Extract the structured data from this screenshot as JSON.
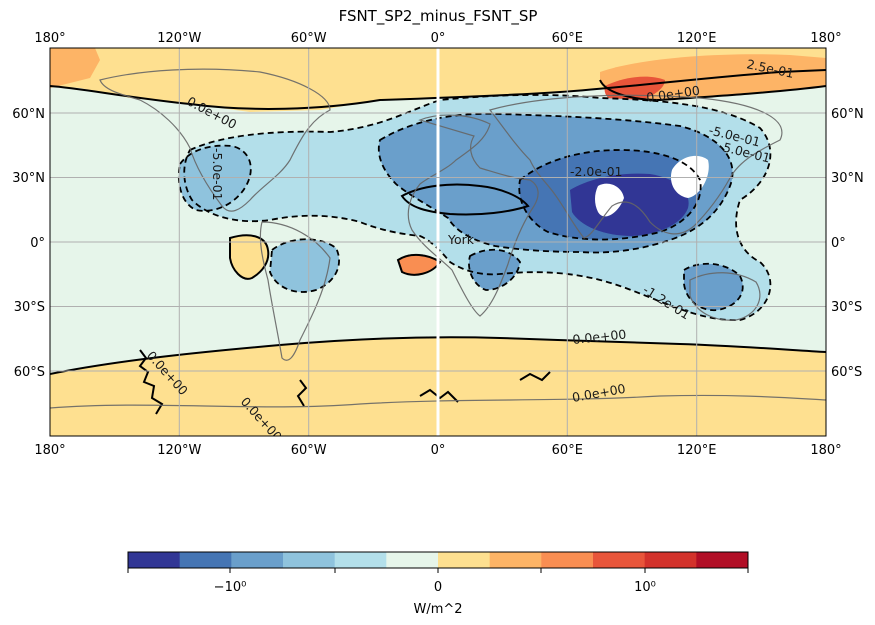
{
  "title": "FSNT_SP2_minus_FSNT_SP",
  "map": {
    "lon_ticks_top": [
      "180°",
      "120°W",
      "60°W",
      "0°",
      "60°E",
      "120°E",
      "180°"
    ],
    "lon_ticks_bottom": [
      "180°",
      "120°W",
      "60°W",
      "0°",
      "60°E",
      "120°E",
      "180°"
    ],
    "lat_ticks_left": [
      "60°N",
      "30°N",
      "0°",
      "30°S",
      "60°S"
    ],
    "lat_ticks_right": [
      "60°N",
      "30°N",
      "0°",
      "30°S",
      "60°S"
    ],
    "gridlines": true,
    "contour_labels": [
      "2.5e-01",
      "0.0e+00",
      "0.0e+00",
      "-5.0e-01",
      "-5.0e-01",
      "-2.0e-01",
      "-1.2e-01",
      "0.0e+00",
      "0.0e+00",
      "-5.0e-01",
      "0.0e+00",
      "0.0e+00",
      "York"
    ]
  },
  "colorbar": {
    "label": "W/m^2",
    "tick_labels": [
      "−10⁰",
      "0",
      "10⁰"
    ],
    "colors": [
      "#313695",
      "#4575b4",
      "#6a9fcb",
      "#8fc3dd",
      "#b3dfea",
      "#e6f5ea",
      "#fee090",
      "#fdb466",
      "#f98e52",
      "#e8553a",
      "#d3322b",
      "#b10e26"
    ]
  }
}
